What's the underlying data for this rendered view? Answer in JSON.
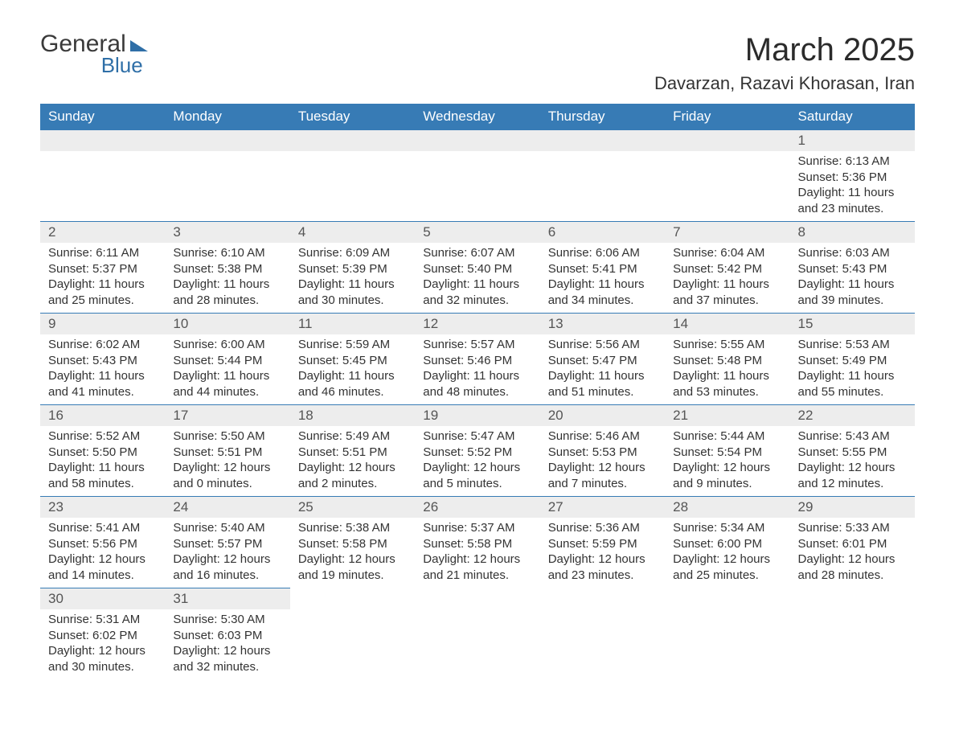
{
  "logo": {
    "line1": "General",
    "line2": "Blue",
    "brand_color": "#2f6fa7"
  },
  "title": "March 2025",
  "location": "Davarzan, Razavi Khorasan, Iran",
  "colors": {
    "header_bg": "#377bb5",
    "header_fg": "#ffffff",
    "daynum_bg": "#ededed",
    "row_border": "#377bb5",
    "text": "#333333",
    "background": "#ffffff"
  },
  "typography": {
    "title_fontsize": 40,
    "location_fontsize": 22,
    "header_fontsize": 17,
    "body_fontsize": 15
  },
  "weekdays": [
    "Sunday",
    "Monday",
    "Tuesday",
    "Wednesday",
    "Thursday",
    "Friday",
    "Saturday"
  ],
  "layout": {
    "first_weekday_index": 6,
    "weeks": 6
  },
  "days": [
    {
      "n": 1,
      "sunrise": "6:13 AM",
      "sunset": "5:36 PM",
      "daylight": "11 hours and 23 minutes."
    },
    {
      "n": 2,
      "sunrise": "6:11 AM",
      "sunset": "5:37 PM",
      "daylight": "11 hours and 25 minutes."
    },
    {
      "n": 3,
      "sunrise": "6:10 AM",
      "sunset": "5:38 PM",
      "daylight": "11 hours and 28 minutes."
    },
    {
      "n": 4,
      "sunrise": "6:09 AM",
      "sunset": "5:39 PM",
      "daylight": "11 hours and 30 minutes."
    },
    {
      "n": 5,
      "sunrise": "6:07 AM",
      "sunset": "5:40 PM",
      "daylight": "11 hours and 32 minutes."
    },
    {
      "n": 6,
      "sunrise": "6:06 AM",
      "sunset": "5:41 PM",
      "daylight": "11 hours and 34 minutes."
    },
    {
      "n": 7,
      "sunrise": "6:04 AM",
      "sunset": "5:42 PM",
      "daylight": "11 hours and 37 minutes."
    },
    {
      "n": 8,
      "sunrise": "6:03 AM",
      "sunset": "5:43 PM",
      "daylight": "11 hours and 39 minutes."
    },
    {
      "n": 9,
      "sunrise": "6:02 AM",
      "sunset": "5:43 PM",
      "daylight": "11 hours and 41 minutes."
    },
    {
      "n": 10,
      "sunrise": "6:00 AM",
      "sunset": "5:44 PM",
      "daylight": "11 hours and 44 minutes."
    },
    {
      "n": 11,
      "sunrise": "5:59 AM",
      "sunset": "5:45 PM",
      "daylight": "11 hours and 46 minutes."
    },
    {
      "n": 12,
      "sunrise": "5:57 AM",
      "sunset": "5:46 PM",
      "daylight": "11 hours and 48 minutes."
    },
    {
      "n": 13,
      "sunrise": "5:56 AM",
      "sunset": "5:47 PM",
      "daylight": "11 hours and 51 minutes."
    },
    {
      "n": 14,
      "sunrise": "5:55 AM",
      "sunset": "5:48 PM",
      "daylight": "11 hours and 53 minutes."
    },
    {
      "n": 15,
      "sunrise": "5:53 AM",
      "sunset": "5:49 PM",
      "daylight": "11 hours and 55 minutes."
    },
    {
      "n": 16,
      "sunrise": "5:52 AM",
      "sunset": "5:50 PM",
      "daylight": "11 hours and 58 minutes."
    },
    {
      "n": 17,
      "sunrise": "5:50 AM",
      "sunset": "5:51 PM",
      "daylight": "12 hours and 0 minutes."
    },
    {
      "n": 18,
      "sunrise": "5:49 AM",
      "sunset": "5:51 PM",
      "daylight": "12 hours and 2 minutes."
    },
    {
      "n": 19,
      "sunrise": "5:47 AM",
      "sunset": "5:52 PM",
      "daylight": "12 hours and 5 minutes."
    },
    {
      "n": 20,
      "sunrise": "5:46 AM",
      "sunset": "5:53 PM",
      "daylight": "12 hours and 7 minutes."
    },
    {
      "n": 21,
      "sunrise": "5:44 AM",
      "sunset": "5:54 PM",
      "daylight": "12 hours and 9 minutes."
    },
    {
      "n": 22,
      "sunrise": "5:43 AM",
      "sunset": "5:55 PM",
      "daylight": "12 hours and 12 minutes."
    },
    {
      "n": 23,
      "sunrise": "5:41 AM",
      "sunset": "5:56 PM",
      "daylight": "12 hours and 14 minutes."
    },
    {
      "n": 24,
      "sunrise": "5:40 AM",
      "sunset": "5:57 PM",
      "daylight": "12 hours and 16 minutes."
    },
    {
      "n": 25,
      "sunrise": "5:38 AM",
      "sunset": "5:58 PM",
      "daylight": "12 hours and 19 minutes."
    },
    {
      "n": 26,
      "sunrise": "5:37 AM",
      "sunset": "5:58 PM",
      "daylight": "12 hours and 21 minutes."
    },
    {
      "n": 27,
      "sunrise": "5:36 AM",
      "sunset": "5:59 PM",
      "daylight": "12 hours and 23 minutes."
    },
    {
      "n": 28,
      "sunrise": "5:34 AM",
      "sunset": "6:00 PM",
      "daylight": "12 hours and 25 minutes."
    },
    {
      "n": 29,
      "sunrise": "5:33 AM",
      "sunset": "6:01 PM",
      "daylight": "12 hours and 28 minutes."
    },
    {
      "n": 30,
      "sunrise": "5:31 AM",
      "sunset": "6:02 PM",
      "daylight": "12 hours and 30 minutes."
    },
    {
      "n": 31,
      "sunrise": "5:30 AM",
      "sunset": "6:03 PM",
      "daylight": "12 hours and 32 minutes."
    }
  ],
  "labels": {
    "sunrise_prefix": "Sunrise: ",
    "sunset_prefix": "Sunset: ",
    "daylight_prefix": "Daylight: "
  }
}
